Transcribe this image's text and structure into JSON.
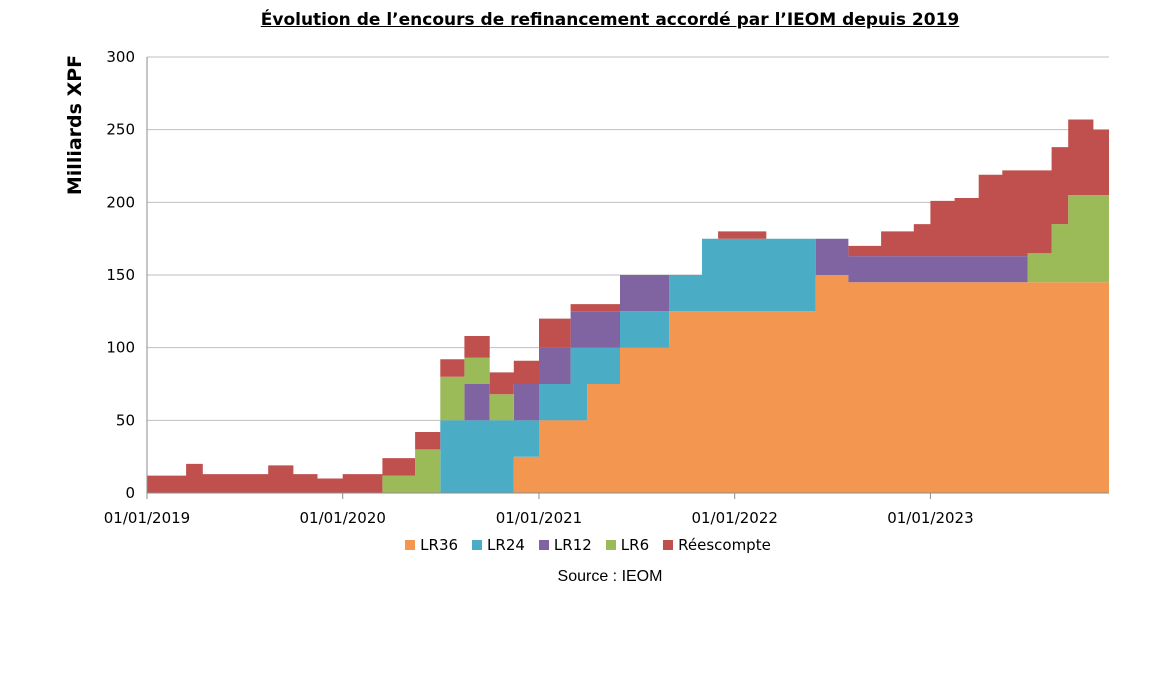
{
  "chart_data": {
    "type": "area",
    "title": "Évolution de l’encours de refinancement accordé par l’IEOM depuis 2019",
    "ylabel": "Milliards XPF",
    "xlabel": "",
    "ylim": [
      0,
      300
    ],
    "yticks": [
      "0",
      "50",
      "100",
      "150",
      "200",
      "250",
      "300"
    ],
    "xrange": [
      "2019-01-01",
      "2023-11-30"
    ],
    "xticks": [
      {
        "date": "2019-01-01",
        "label": "01/01/2019"
      },
      {
        "date": "2020-01-01",
        "label": "01/01/2020"
      },
      {
        "date": "2021-01-01",
        "label": "01/01/2021"
      },
      {
        "date": "2022-01-01",
        "label": "01/01/2022"
      },
      {
        "date": "2023-01-01",
        "label": "01/01/2023"
      }
    ],
    "stacking": "stacked",
    "grid": "horizontal",
    "legend_position": "bottom",
    "x": [
      "2019-01-01",
      "2019-03-15",
      "2019-04-15",
      "2019-06-01",
      "2019-07-01",
      "2019-08-15",
      "2019-10-01",
      "2019-11-15",
      "2020-01-01",
      "2020-03-15",
      "2020-05-15",
      "2020-07-01",
      "2020-08-15",
      "2020-10-01",
      "2020-11-15",
      "2021-01-01",
      "2021-03-01",
      "2021-04-01",
      "2021-06-01",
      "2021-09-01",
      "2021-11-01",
      "2021-12-01",
      "2022-03-01",
      "2022-06-01",
      "2022-07-01",
      "2022-08-01",
      "2022-10-01",
      "2022-12-01",
      "2023-01-01",
      "2023-02-15",
      "2023-04-01",
      "2023-05-15",
      "2023-07-01",
      "2023-08-15",
      "2023-09-15",
      "2023-11-01",
      "2023-11-30"
    ],
    "series": [
      {
        "name": "LR36",
        "color": "#F39650",
        "values": [
          0,
          0,
          0,
          0,
          0,
          0,
          0,
          0,
          0,
          0,
          0,
          0,
          0,
          0,
          25,
          50,
          50,
          75,
          100,
          125,
          125,
          125,
          125,
          150,
          150,
          145,
          145,
          145,
          145,
          145,
          145,
          145,
          145,
          145,
          145,
          145,
          145
        ]
      },
      {
        "name": "LR24",
        "color": "#4BACC6",
        "values": [
          0,
          0,
          0,
          0,
          0,
          0,
          0,
          0,
          0,
          0,
          0,
          50,
          50,
          50,
          25,
          25,
          50,
          25,
          25,
          25,
          50,
          50,
          50,
          0,
          0,
          0,
          0,
          0,
          0,
          0,
          0,
          0,
          0,
          0,
          0,
          0,
          0
        ]
      },
      {
        "name": "LR12",
        "color": "#8064A2",
        "values": [
          0,
          0,
          0,
          0,
          0,
          0,
          0,
          0,
          0,
          0,
          0,
          0,
          25,
          0,
          25,
          25,
          25,
          25,
          25,
          0,
          0,
          0,
          0,
          25,
          25,
          18,
          18,
          18,
          18,
          18,
          18,
          18,
          0,
          0,
          0,
          0,
          0
        ]
      },
      {
        "name": "LR6",
        "color": "#9BBB59",
        "values": [
          0,
          0,
          0,
          0,
          0,
          0,
          0,
          0,
          0,
          12,
          30,
          30,
          18,
          18,
          0,
          0,
          0,
          0,
          0,
          0,
          0,
          0,
          0,
          0,
          0,
          0,
          0,
          0,
          0,
          0,
          0,
          0,
          20,
          40,
          60,
          60,
          60
        ]
      },
      {
        "name": "Réescompte",
        "color": "#C0504D",
        "values": [
          12,
          20,
          13,
          13,
          13,
          19,
          13,
          10,
          13,
          12,
          12,
          12,
          15,
          15,
          16,
          20,
          5,
          5,
          0,
          0,
          0,
          5,
          0,
          0,
          0,
          7,
          17,
          22,
          38,
          40,
          56,
          59,
          57,
          53,
          52,
          45,
          40
        ]
      }
    ]
  },
  "source": "Source : IEOM"
}
